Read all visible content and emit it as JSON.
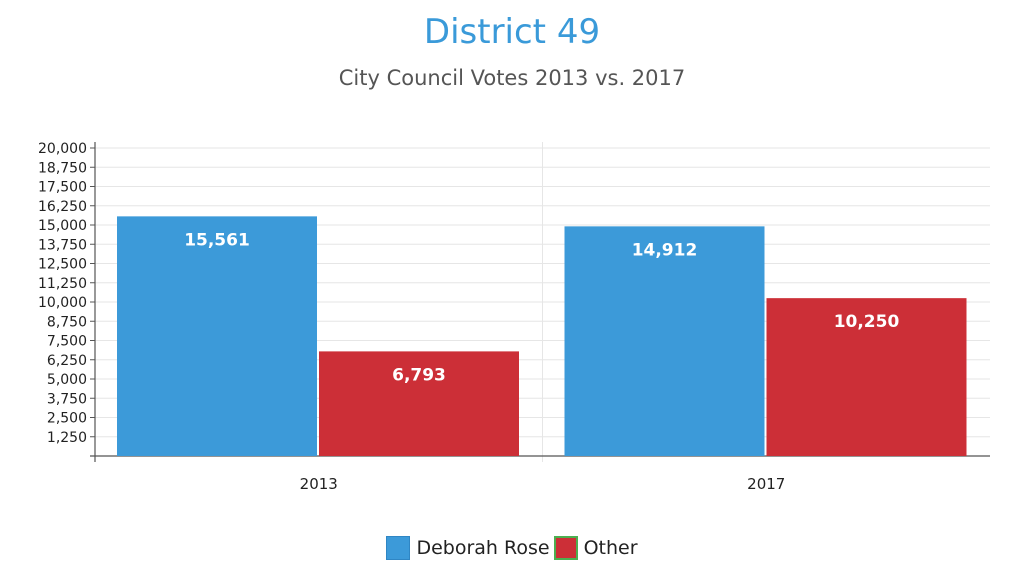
{
  "colors": {
    "title": "#3a9ad9",
    "blue": "#3c9ad9",
    "red": "#cc2f37"
  },
  "chart_data": {
    "type": "bar",
    "title": "District 49",
    "subtitle": "City Council Votes 2013 vs. 2017",
    "categories": [
      "2013",
      "2017"
    ],
    "series": [
      {
        "name": "Deborah Rose",
        "color": "#3c9ad9",
        "values": [
          15561,
          14912
        ],
        "labels": [
          "15,561",
          "14,912"
        ]
      },
      {
        "name": "Other",
        "color": "#cc2f37",
        "values": [
          6793,
          10250
        ],
        "labels": [
          "6,793",
          "10,250"
        ]
      }
    ],
    "ylim": [
      0,
      20000
    ],
    "yticks": [
      "1,250",
      "2,500",
      "3,750",
      "5,000",
      "6,250",
      "7,500",
      "8,750",
      "10,000",
      "11,250",
      "12,500",
      "13,750",
      "15,000",
      "16,250",
      "17,500",
      "18,750",
      "20,000"
    ],
    "ytick_values": [
      1250,
      2500,
      3750,
      5000,
      6250,
      7500,
      8750,
      10000,
      11250,
      12500,
      13750,
      15000,
      16250,
      17500,
      18750,
      20000
    ],
    "grid": true,
    "legend": "bottom-center"
  }
}
